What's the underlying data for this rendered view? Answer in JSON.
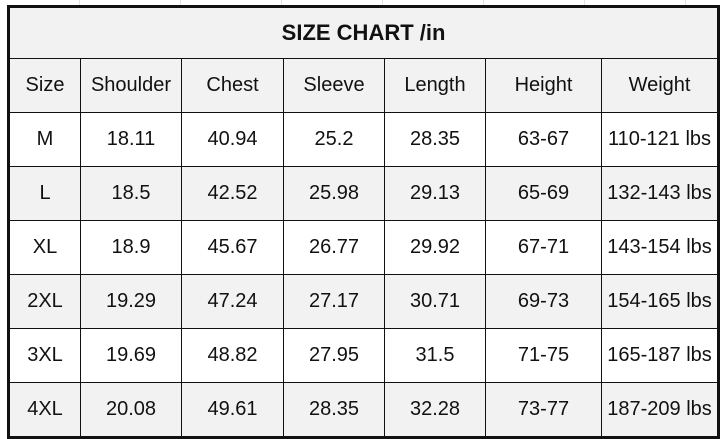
{
  "title": "SIZE CHART /in",
  "headers": [
    "Size",
    "Shoulder",
    "Chest",
    "Sleeve",
    "Length",
    "Height",
    "Weight"
  ],
  "rows": [
    [
      "M",
      "18.11",
      "40.94",
      "25.2",
      "28.35",
      "63-67",
      "110-121 lbs"
    ],
    [
      "L",
      "18.5",
      "42.52",
      "25.98",
      "29.13",
      "65-69",
      "132-143 lbs"
    ],
    [
      "XL",
      "18.9",
      "45.67",
      "26.77",
      "29.92",
      "67-71",
      "143-154 lbs"
    ],
    [
      "2XL",
      "19.29",
      "47.24",
      "27.17",
      "30.71",
      "69-73",
      "154-165 lbs"
    ],
    [
      "3XL",
      "19.69",
      "48.82",
      "27.95",
      "31.5",
      "71-75",
      "165-187 lbs"
    ],
    [
      "4XL",
      "20.08",
      "49.61",
      "28.35",
      "32.28",
      "73-77",
      "187-209 lbs"
    ]
  ]
}
